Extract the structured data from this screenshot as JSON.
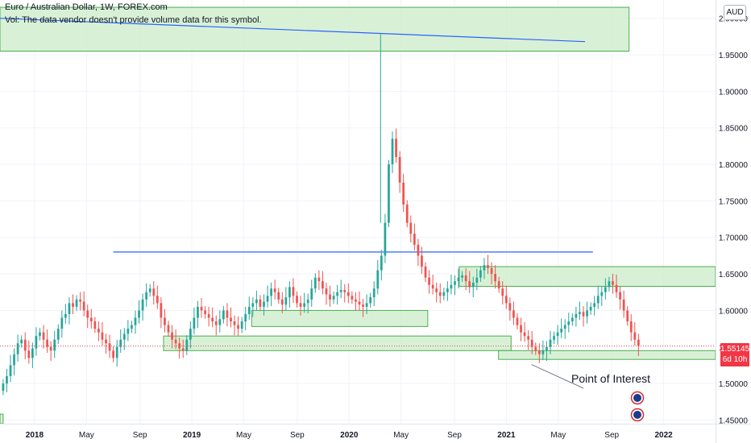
{
  "header": {
    "title": "Euro / Australian Dollar, 1W, FOREX.com",
    "vol_note": "Vol: The data vendor doesn't provide volume data for this symbol."
  },
  "currency_button": "AUD",
  "price_tag": {
    "price": "1.55145",
    "countdown": "6d 10h"
  },
  "annotation": "Point of Interest",
  "colors": {
    "up": "#26a69a",
    "down": "#ef5350",
    "zone_fill": "#c8ebc4",
    "zone_border": "#4caf50",
    "line": "#2962ff",
    "price_tag": "#f23645",
    "grid": "#f0f3fa"
  },
  "chart_data": {
    "type": "candlestick",
    "symbol": "Euro / Australian Dollar",
    "timeframe": "1W",
    "broker": "FOREX.com",
    "y_ticks": [
      "2.00000",
      "1.95000",
      "1.90000",
      "1.85000",
      "1.80000",
      "1.75000",
      "1.70000",
      "1.65000",
      "1.60000",
      "1.55000",
      "1.50000",
      "1.45000"
    ],
    "ylim": [
      1.445,
      2.025
    ],
    "x_ticks": [
      "2018",
      "May",
      "Sep",
      "2019",
      "May",
      "Sep",
      "2020",
      "May",
      "Sep",
      "2021",
      "May",
      "Sep",
      "2022"
    ],
    "x_tick_values": [
      2018.0,
      2018.33,
      2018.67,
      2019.0,
      2019.33,
      2019.67,
      2020.0,
      2020.33,
      2020.67,
      2021.0,
      2021.33,
      2021.67,
      2022.0
    ],
    "xlim": [
      2017.78,
      2022.33
    ],
    "current_price": 1.55145,
    "closes": [
      1.5,
      1.51,
      1.525,
      1.54,
      1.555,
      1.56,
      1.545,
      1.535,
      1.548,
      1.565,
      1.57,
      1.56,
      1.55,
      1.545,
      1.56,
      1.575,
      1.59,
      1.595,
      1.61,
      1.605,
      1.615,
      1.612,
      1.6,
      1.59,
      1.585,
      1.575,
      1.57,
      1.56,
      1.555,
      1.545,
      1.535,
      1.55,
      1.56,
      1.568,
      1.575,
      1.58,
      1.59,
      1.6,
      1.615,
      1.625,
      1.63,
      1.62,
      1.61,
      1.59,
      1.58,
      1.57,
      1.56,
      1.555,
      1.548,
      1.545,
      1.56,
      1.575,
      1.59,
      1.605,
      1.6,
      1.595,
      1.59,
      1.585,
      1.58,
      1.588,
      1.6,
      1.59,
      1.585,
      1.58,
      1.575,
      1.585,
      1.595,
      1.605,
      1.61,
      1.615,
      1.605,
      1.612,
      1.62,
      1.63,
      1.625,
      1.615,
      1.608,
      1.618,
      1.632,
      1.62,
      1.61,
      1.605,
      1.61,
      1.615,
      1.63,
      1.645,
      1.64,
      1.63,
      1.622,
      1.615,
      1.62,
      1.625,
      1.628,
      1.625,
      1.62,
      1.615,
      1.612,
      1.608,
      1.605,
      1.61,
      1.618,
      1.63,
      1.655,
      1.675,
      1.72,
      1.8,
      1.835,
      1.81,
      1.775,
      1.745,
      1.72,
      1.705,
      1.69,
      1.675,
      1.66,
      1.645,
      1.635,
      1.63,
      1.625,
      1.62,
      1.625,
      1.63,
      1.635,
      1.64,
      1.645,
      1.648,
      1.64,
      1.632,
      1.638,
      1.645,
      1.655,
      1.662,
      1.658,
      1.65,
      1.64,
      1.63,
      1.62,
      1.61,
      1.6,
      1.59,
      1.58,
      1.57,
      1.565,
      1.56,
      1.55,
      1.545,
      1.54,
      1.545,
      1.55,
      1.56,
      1.565,
      1.57,
      1.575,
      1.58,
      1.585,
      1.59,
      1.595,
      1.598,
      1.592,
      1.6,
      1.605,
      1.61,
      1.62,
      1.625,
      1.632,
      1.64,
      1.635,
      1.625,
      1.615,
      1.6,
      1.585,
      1.57,
      1.56,
      1.55145
    ],
    "horizontal_lines": [
      {
        "price": 1.68,
        "x_start": 2018.5,
        "x_end": 2021.55
      }
    ],
    "trend_lines": [
      {
        "from": [
          2017.78,
          2.0
        ],
        "to": [
          2021.5,
          1.968
        ]
      }
    ],
    "zones": [
      {
        "x_start": 2017.78,
        "x_end": 2021.78,
        "y_top": 2.015,
        "y_bottom": 1.955
      },
      {
        "x_start": 2019.38,
        "x_end": 2020.5,
        "y_top": 1.578,
        "y_bottom": 1.6
      },
      {
        "x_start": 2018.82,
        "x_end": 2021.03,
        "y_top": 1.565,
        "y_bottom": 1.545
      },
      {
        "x_start": 2020.7,
        "x_end": 2022.33,
        "y_top": 1.66,
        "y_bottom": 1.633
      },
      {
        "x_start": 2020.95,
        "x_end": 2022.33,
        "y_top": 1.545,
        "y_bottom": 1.533
      },
      {
        "x_start": 2017.78,
        "x_end": 2017.8,
        "y_top": 1.458,
        "y_bottom": 1.445
      }
    ],
    "annotations": [
      {
        "text": "Point of Interest",
        "anchor": [
          2021.16,
          1.526
        ]
      }
    ]
  }
}
